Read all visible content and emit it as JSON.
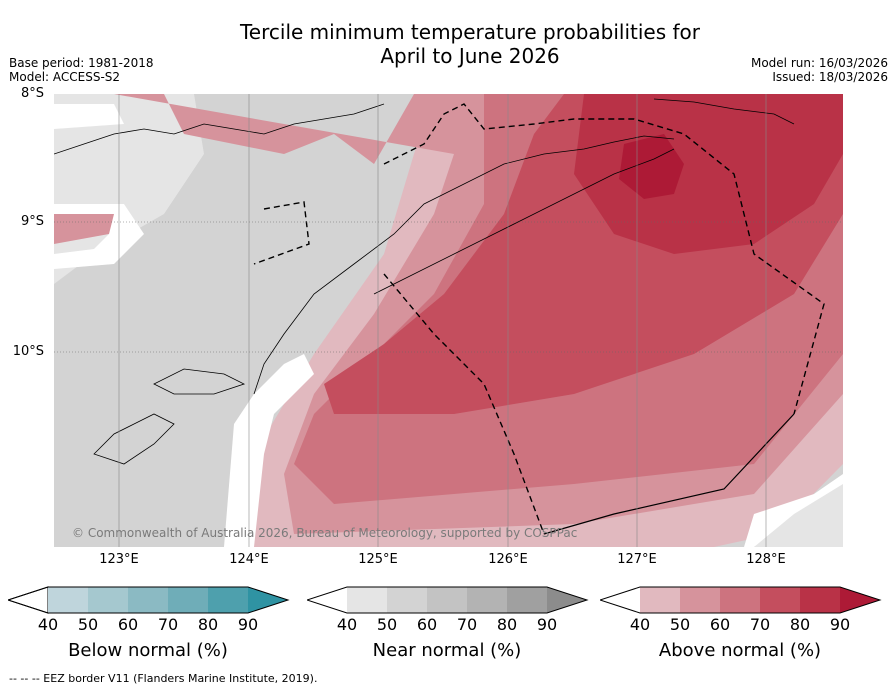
{
  "title_line1": "Tercile minimum temperature probabilities for",
  "title_line2": "April to June 2026",
  "base_period": "Base period: 1981-2018",
  "model": "Model: ACCESS-S2",
  "model_run": "Model run: 16/03/2026",
  "issued": "Issued: 18/03/2026",
  "lat_labels": [
    "8°S",
    "9°S",
    "10°S"
  ],
  "lon_labels": [
    "123°E",
    "124°E",
    "125°E",
    "126°E",
    "127°E",
    "128°E"
  ],
  "copyright": "© Commonwealth of Australia 2026, Bureau of Meteorology, supported by COSPPac",
  "colorbars": [
    {
      "title": "Below normal (%)",
      "ticks": [
        "40",
        "50",
        "60",
        "70",
        "80",
        "90"
      ],
      "colors": [
        "#bfd5dc",
        "#a5c8cf",
        "#8bbac3",
        "#6fadb8",
        "#4ea0ad",
        "#2f93a3"
      ]
    },
    {
      "title": "Near normal (%)",
      "ticks": [
        "40",
        "50",
        "60",
        "70",
        "80",
        "90"
      ],
      "colors": [
        "#e5e5e5",
        "#d3d3d3",
        "#c3c3c3",
        "#b3b3b3",
        "#a0a0a0",
        "#8c8c8c"
      ]
    },
    {
      "title": "Above normal (%)",
      "ticks": [
        "40",
        "50",
        "60",
        "70",
        "80",
        "90"
      ],
      "colors": [
        "#e1b9bf",
        "#d6939c",
        "#cd737f",
        "#c44e5e",
        "#b93247",
        "#ad1a36"
      ]
    }
  ],
  "footer": "--  --  -- EEZ border V11 (Flanders Marine Institute, 2019)."
}
